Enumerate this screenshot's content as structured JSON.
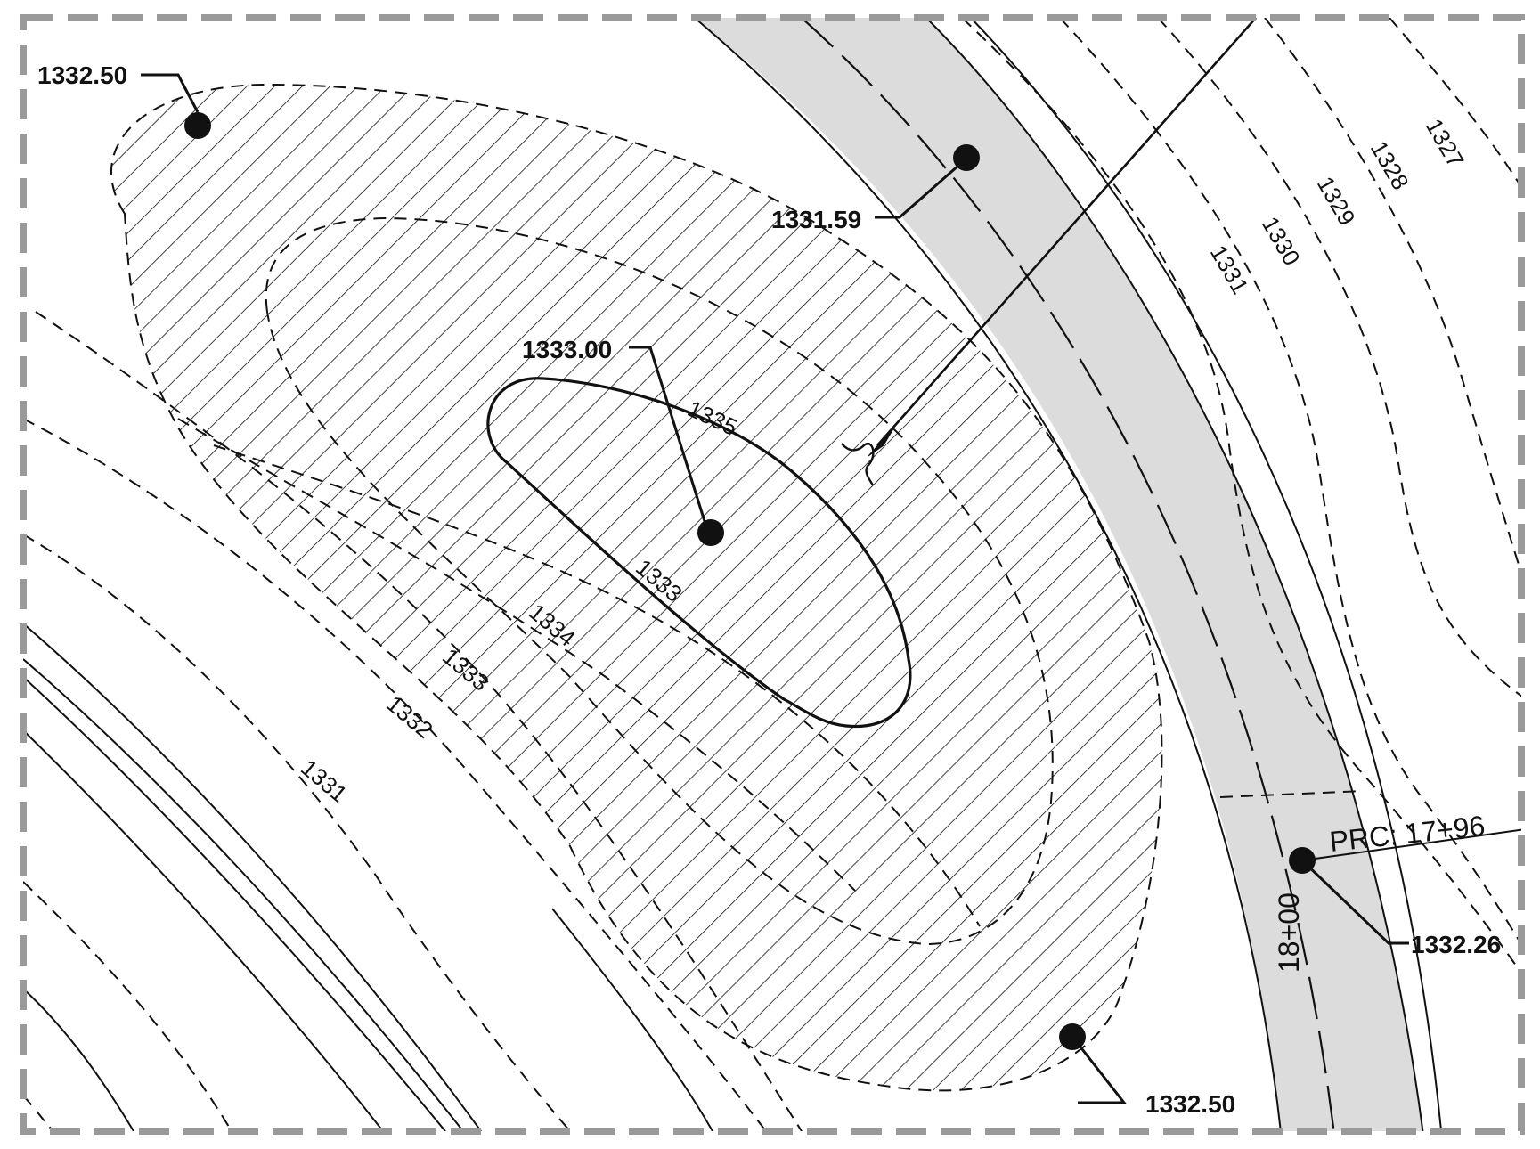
{
  "spot_elevations": {
    "top_left": "1332.50",
    "top_road": "1331.59",
    "center_high": "1333.00",
    "bottom": "1332.50",
    "station_point": "1332.26"
  },
  "contour_labels": {
    "c1327": "1327",
    "c1328": "1328",
    "c1329": "1329",
    "c1330": "1330",
    "c1331_upper": "1331",
    "c1335": "1335",
    "c1333_inner": "1333",
    "c1334": "1334",
    "c1333_outer": "1333",
    "c1332": "1332",
    "c1331_lower": "1331"
  },
  "stations": {
    "prc": "PRC: 17+96",
    "station_18": "18+00"
  },
  "colors": {
    "line": "#111111",
    "road_fill": "#dcdcdc",
    "frame": "#9a9a9a",
    "background": "#ffffff"
  }
}
